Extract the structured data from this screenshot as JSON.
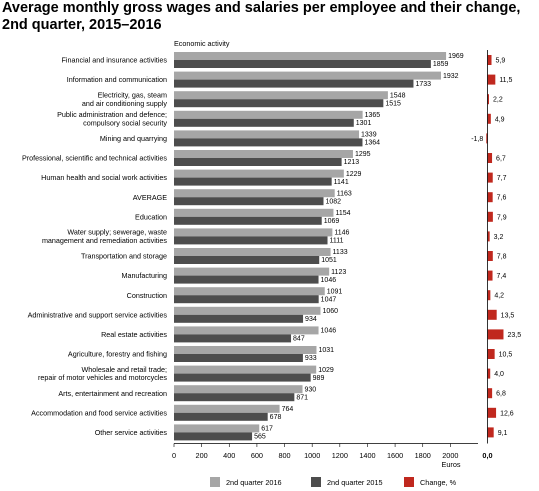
{
  "chart_data": {
    "type": "bar",
    "title": "Average monthly gross wages and salaries per employee and their change, 2nd quarter, 2015–2016",
    "category_axis_title": "Economic activity",
    "xlabel": "Euros",
    "xlim": [
      0,
      2200
    ],
    "xticks": [
      "0",
      "200",
      "400",
      "600",
      "800",
      "1000",
      "1200",
      "1400",
      "1600",
      "1800",
      "2000"
    ],
    "change_axis_tick": "0,0",
    "categories": [
      [
        "Financial and insurance activities"
      ],
      [
        "Information and communication"
      ],
      [
        "Electricity, gas, steam",
        "and air conditioning supply"
      ],
      [
        "Public administration and defence;",
        "compulsory social security"
      ],
      [
        "Mining and quarrying"
      ],
      [
        "Professional, scientific and technical activities"
      ],
      [
        "Human health and social work activities"
      ],
      [
        "AVERAGE"
      ],
      [
        "Education"
      ],
      [
        "Water supply; sewerage, waste",
        "management and remediation activities"
      ],
      [
        "Transportation and storage"
      ],
      [
        "Manufacturing"
      ],
      [
        "Construction"
      ],
      [
        "Administrative and support service activities"
      ],
      [
        "Real estate activities"
      ],
      [
        "Agriculture, forestry and fishing"
      ],
      [
        "Wholesale and retail trade;",
        "repair of motor vehicles and motorcycles"
      ],
      [
        "Arts, entertainment and recreation"
      ],
      [
        "Accommodation and food service activities"
      ],
      [
        "Other service activities"
      ]
    ],
    "series": [
      {
        "name": "2nd quarter 2016",
        "color": "#a6a6a6",
        "values": [
          1969,
          1932,
          1548,
          1365,
          1339,
          1295,
          1229,
          1163,
          1154,
          1146,
          1133,
          1123,
          1091,
          1060,
          1046,
          1031,
          1029,
          930,
          764,
          617
        ],
        "labels": [
          "1969",
          "1932",
          "1548",
          "1365",
          "1339",
          "1295",
          "1229",
          "1163",
          "1154",
          "1146",
          "1133",
          "1123",
          "1091",
          "1060",
          "1046",
          "1031",
          "1029",
          "930",
          "764",
          "617"
        ]
      },
      {
        "name": "2nd quarter 2015",
        "color": "#4d4d4d",
        "values": [
          1859,
          1733,
          1515,
          1301,
          1364,
          1213,
          1141,
          1082,
          1069,
          1111,
          1051,
          1046,
          1047,
          934,
          847,
          933,
          989,
          871,
          678,
          565
        ],
        "labels": [
          "1859",
          "1733",
          "1515",
          "1301",
          "1364",
          "1213",
          "1141",
          "1082",
          "1069",
          "1111",
          "1051",
          "1046",
          "1047",
          "934",
          "847",
          "933",
          "989",
          "871",
          "678",
          "565"
        ]
      }
    ],
    "change": {
      "name": "Change, %",
      "color": "#c0281e",
      "values": [
        5.9,
        11.5,
        2.2,
        4.9,
        -1.8,
        6.7,
        7.7,
        7.6,
        7.9,
        3.2,
        7.8,
        7.4,
        4.2,
        13.5,
        23.5,
        10.5,
        4.0,
        6.8,
        12.6,
        9.1
      ],
      "labels": [
        "5,9",
        "11,5",
        "2,2",
        "4,9",
        "-1,8",
        "6,7",
        "7,7",
        "7,6",
        "7,9",
        "3,2",
        "7,8",
        "7,4",
        "4,2",
        "13,5",
        "23,5",
        "10,5",
        "4,0",
        "6,8",
        "12,6",
        "9,1"
      ]
    },
    "grid": false,
    "legend_position": "bottom"
  }
}
